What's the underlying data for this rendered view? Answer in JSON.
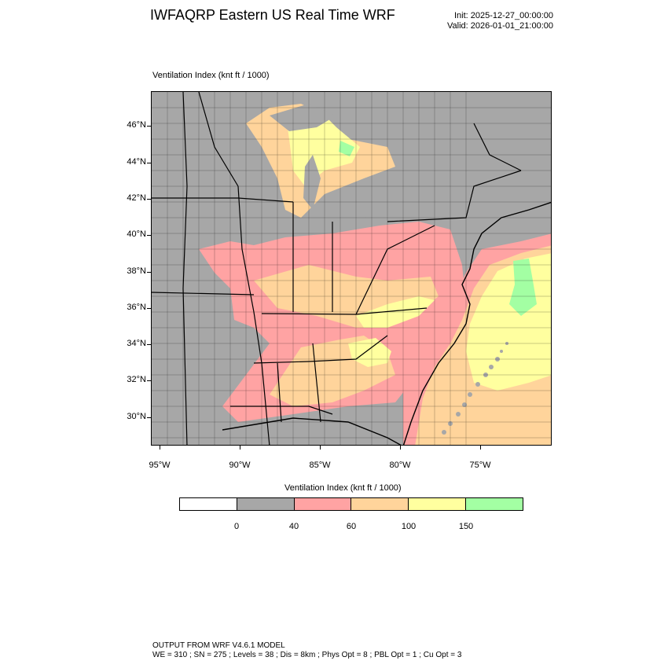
{
  "header": {
    "title": "IWFAQRP Eastern US Real Time WRF",
    "init": "Init: 2025-12-27_00:00:00",
    "valid": "Valid: 2026-01-01_21:00:00"
  },
  "plot": {
    "title": "Ventilation Index   (knt ft / 1000)"
  },
  "axes": {
    "lat_labels": [
      "46°N",
      "44°N",
      "42°N",
      "40°N",
      "38°N",
      "36°N",
      "34°N",
      "32°N",
      "30°N"
    ],
    "lon_labels": [
      "95°W",
      "90°W",
      "85°W",
      "80°W",
      "75°W"
    ]
  },
  "colorbar": {
    "title": "Ventilation Index  (knt ft / 1000)",
    "colors": [
      "#ffffff",
      "#a7a7a7",
      "#ffa3a3",
      "#ffd49b",
      "#ffff9f",
      "#a3ffa3"
    ],
    "labels": [
      "0",
      "40",
      "60",
      "100",
      "150"
    ]
  },
  "footer": {
    "line1": "OUTPUT FROM WRF V4.6.1 MODEL",
    "line2": "WE = 310 ; SN = 275 ; Levels = 38 ; Dis = 8km ; Phys Opt = 8 ; PBL Opt = 1 ; Cu Opt = 3"
  }
}
